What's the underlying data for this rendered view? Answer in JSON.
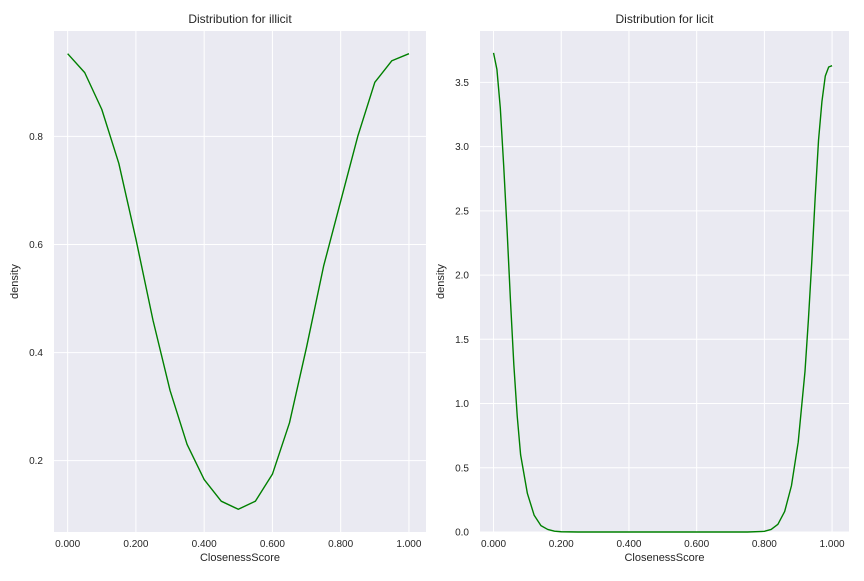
{
  "chart_data": [
    {
      "type": "line",
      "title": "Distribution for illicit",
      "xlabel": "ClosenessScore",
      "ylabel": "density",
      "xlim": [
        -0.04,
        1.05
      ],
      "ylim": [
        0.068,
        0.995
      ],
      "xticks": [
        0.0,
        0.2,
        0.4,
        0.6,
        0.8,
        1.0
      ],
      "xtick_labels": [
        "0.000",
        "0.200",
        "0.400",
        "0.600",
        "0.800",
        "1.000"
      ],
      "yticks": [
        0.2,
        0.4,
        0.6,
        0.8
      ],
      "ytick_labels": [
        "0.2",
        "0.4",
        "0.6",
        "0.8"
      ],
      "grid": true,
      "color": "#008000",
      "series": [
        {
          "x": [
            0.0,
            0.05,
            0.1,
            0.15,
            0.2,
            0.25,
            0.3,
            0.35,
            0.4,
            0.45,
            0.5,
            0.55,
            0.6,
            0.65,
            0.7,
            0.75,
            0.8,
            0.85,
            0.9,
            0.95,
            1.0
          ],
          "y": [
            0.953,
            0.918,
            0.85,
            0.75,
            0.61,
            0.46,
            0.33,
            0.23,
            0.165,
            0.125,
            0.11,
            0.125,
            0.175,
            0.27,
            0.41,
            0.56,
            0.68,
            0.8,
            0.9,
            0.94,
            0.953
          ]
        }
      ]
    },
    {
      "type": "line",
      "title": "Distribution for licit",
      "xlabel": "ClosenessScore",
      "ylabel": "density",
      "xlim": [
        -0.04,
        1.05
      ],
      "ylim": [
        0.0,
        3.9
      ],
      "xticks": [
        0.0,
        0.2,
        0.4,
        0.6,
        0.8,
        1.0
      ],
      "xtick_labels": [
        "0.000",
        "0.200",
        "0.400",
        "0.600",
        "0.800",
        "1.000"
      ],
      "yticks": [
        0.0,
        0.5,
        1.0,
        1.5,
        2.0,
        2.5,
        3.0,
        3.5
      ],
      "ytick_labels": [
        "0.0",
        "0.5",
        "1.0",
        "1.5",
        "2.0",
        "2.5",
        "3.0",
        "3.5"
      ],
      "grid": true,
      "color": "#008000",
      "series": [
        {
          "x": [
            0.0,
            0.01,
            0.02,
            0.03,
            0.04,
            0.05,
            0.06,
            0.07,
            0.08,
            0.1,
            0.12,
            0.14,
            0.16,
            0.18,
            0.2,
            0.25,
            0.4,
            0.6,
            0.75,
            0.8,
            0.82,
            0.84,
            0.86,
            0.88,
            0.9,
            0.92,
            0.93,
            0.94,
            0.95,
            0.96,
            0.97,
            0.98,
            0.99,
            1.0
          ],
          "y": [
            3.73,
            3.6,
            3.3,
            2.85,
            2.35,
            1.8,
            1.3,
            0.9,
            0.6,
            0.3,
            0.13,
            0.05,
            0.02,
            0.006,
            0.002,
            0.0,
            0.0,
            0.0,
            0.0,
            0.005,
            0.02,
            0.06,
            0.16,
            0.36,
            0.7,
            1.25,
            1.65,
            2.1,
            2.6,
            3.05,
            3.35,
            3.55,
            3.62,
            3.63
          ]
        }
      ]
    }
  ]
}
